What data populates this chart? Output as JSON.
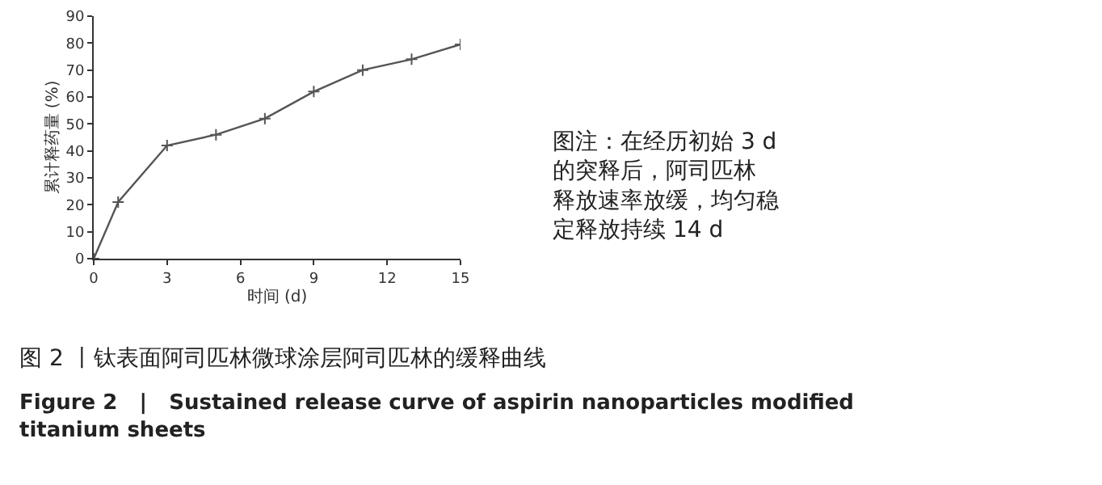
{
  "chart_data": {
    "type": "line",
    "xlabel": "时间 (d)",
    "ylabel": "累计释药量 (%)",
    "x": [
      0,
      1,
      3,
      5,
      7,
      9,
      11,
      13,
      15
    ],
    "series": [
      {
        "color": "#555555",
        "values": [
          0,
          21,
          42,
          46,
          52,
          62,
          70,
          74,
          79.5
        ]
      }
    ],
    "xlim": [
      0,
      15
    ],
    "xticks": [
      0,
      3,
      6,
      9,
      12,
      15
    ],
    "ylim": [
      0,
      90
    ],
    "yticks": [
      0,
      10,
      20,
      30,
      40,
      50,
      60,
      70,
      80,
      90
    ],
    "marker": "cross",
    "line_style": "solid",
    "annotations": [
      "图注：在经历初始 3 d 的突释后，阿司匹林释放速率放缓，均匀稳定释放持续 14 d",
      "图 2 丨钛表面阿司匹林微球涂层阿司匹林的缓释曲线",
      "Figure 2   |   Sustained release curve of aspirin nanoparticles modified titanium sheets"
    ]
  }
}
